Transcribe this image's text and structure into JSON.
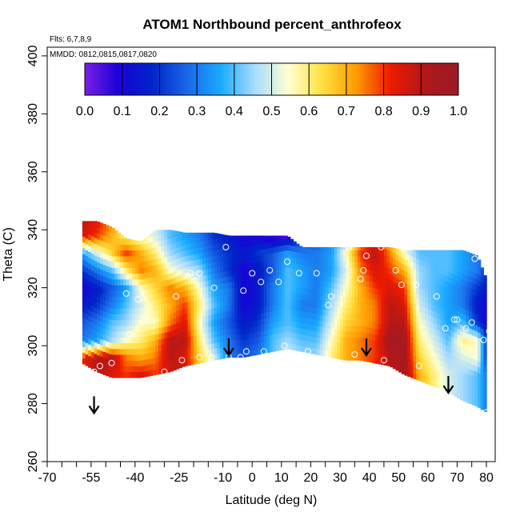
{
  "chart_data": {
    "type": "heatmap",
    "title": "ATOM1 Northbound percent_anthrofeox",
    "flights_note": "Flts: 6,7,8,9",
    "dates_note": "MMDD: 0812,0815,0817,0820",
    "xlabel": "Latitude (deg N)",
    "ylabel": "Theta (C)",
    "xlim": [
      -70,
      83
    ],
    "ylim": [
      260,
      403
    ],
    "x_tick_labels": [
      "-70",
      "-55",
      "-40",
      "-25",
      "-10",
      "0",
      "10",
      "20",
      "30",
      "40",
      "50",
      "60",
      "70",
      "80"
    ],
    "x_tick_values": [
      -70,
      -55,
      -40,
      -25,
      -10,
      0,
      10,
      20,
      30,
      40,
      50,
      60,
      70,
      80
    ],
    "x_minor_ticks": [
      -65,
      -60,
      -50,
      -45,
      -35,
      -30,
      -20,
      -15,
      -5,
      5,
      15,
      25,
      35,
      45,
      55,
      65,
      75
    ],
    "y_tick_values": [
      260,
      280,
      300,
      320,
      340,
      360,
      380,
      400
    ],
    "y_tick_labels": [
      "260",
      "280",
      "300",
      "320",
      "340",
      "360",
      "380",
      "400"
    ],
    "colorbar": {
      "range": [
        0,
        1
      ],
      "tick_labels": [
        "0.0",
        "0.1",
        "0.2",
        "0.3",
        "0.4",
        "0.5",
        "0.6",
        "0.7",
        "0.8",
        "0.9",
        "1.0"
      ],
      "colors": [
        "#7a1fe6",
        "#1a00d8",
        "#0026c8",
        "#1a66e8",
        "#1aaaff",
        "#a8dcff",
        "#ffffd0",
        "#ffe040",
        "#ff9a00",
        "#ee1a00",
        "#b01818",
        "#9a1a28"
      ]
    },
    "arrows_at_latitude": [
      {
        "lat": -54,
        "theta": 277
      },
      {
        "lat": -8,
        "theta": 297
      },
      {
        "lat": 39,
        "theta": 297
      },
      {
        "lat": 67,
        "theta": 284
      }
    ],
    "field": {
      "lat_points": [
        -58,
        -53,
        -48,
        -43,
        -38,
        -33,
        -28,
        -23,
        -18,
        -13,
        -8,
        -3,
        2,
        7,
        12,
        17,
        22,
        27,
        32,
        37,
        42,
        47,
        52,
        57,
        62,
        67,
        72,
        77,
        80
      ],
      "bottom_theta": [
        294,
        291,
        289,
        289,
        289,
        290,
        291,
        293,
        294,
        295,
        296,
        296,
        297,
        298,
        299,
        298,
        297,
        296,
        295,
        295,
        294,
        293,
        290,
        288,
        286,
        284,
        281,
        279,
        277
      ],
      "top_theta": [
        343,
        343,
        341,
        337,
        336,
        340,
        340,
        339,
        339,
        339,
        338,
        338,
        338,
        338,
        338,
        334,
        334,
        334,
        334,
        334,
        334,
        334,
        333,
        333,
        333,
        333,
        333,
        331,
        323
      ],
      "levels_theta": [
        290,
        296,
        302,
        308,
        314,
        320,
        326,
        332,
        338,
        344
      ],
      "values": [
        [
          0.9,
          0.9,
          0.85,
          0.8,
          0.85,
          0.8,
          0.85,
          0.9,
          0.7,
          0.6,
          0.45,
          0.4,
          0.4,
          0.45,
          0.5,
          0.55,
          0.55,
          0.6,
          0.65,
          0.8,
          0.85,
          0.9,
          0.95,
          0.7,
          0.6,
          0.5,
          0.45,
          0.4,
          0.3
        ],
        [
          0.8,
          0.9,
          0.9,
          0.75,
          0.7,
          0.75,
          0.9,
          0.85,
          0.65,
          0.5,
          0.3,
          0.25,
          0.3,
          0.4,
          0.5,
          0.45,
          0.45,
          0.6,
          0.7,
          0.75,
          0.8,
          0.9,
          0.95,
          0.65,
          0.55,
          0.45,
          0.5,
          0.55,
          0.2
        ],
        [
          0.3,
          0.35,
          0.45,
          0.55,
          0.6,
          0.7,
          0.9,
          0.9,
          0.6,
          0.4,
          0.3,
          0.2,
          0.25,
          0.4,
          0.45,
          0.4,
          0.4,
          0.55,
          0.7,
          0.75,
          0.8,
          0.95,
          0.95,
          0.6,
          0.5,
          0.4,
          0.6,
          0.55,
          0.2
        ],
        [
          0.25,
          0.3,
          0.4,
          0.45,
          0.55,
          0.55,
          0.75,
          0.85,
          0.55,
          0.35,
          0.25,
          0.15,
          0.2,
          0.35,
          0.4,
          0.35,
          0.35,
          0.5,
          0.65,
          0.7,
          0.75,
          0.9,
          0.9,
          0.55,
          0.45,
          0.35,
          0.4,
          0.2,
          0.1
        ],
        [
          0.15,
          0.2,
          0.3,
          0.4,
          0.5,
          0.6,
          0.7,
          0.8,
          0.6,
          0.4,
          0.3,
          0.1,
          0.15,
          0.3,
          0.4,
          0.3,
          0.3,
          0.45,
          0.6,
          0.7,
          0.75,
          0.9,
          0.85,
          0.5,
          0.4,
          0.35,
          0.3,
          0.15,
          0.1
        ],
        [
          0.1,
          0.15,
          0.25,
          0.35,
          0.55,
          0.65,
          0.75,
          0.7,
          0.55,
          0.35,
          0.3,
          0.1,
          0.15,
          0.3,
          0.4,
          0.35,
          0.3,
          0.4,
          0.55,
          0.7,
          0.8,
          0.85,
          0.8,
          0.45,
          0.4,
          0.35,
          0.3,
          0.2,
          0.15
        ],
        [
          0.2,
          0.3,
          0.4,
          0.6,
          0.75,
          0.7,
          0.55,
          0.5,
          0.45,
          0.3,
          0.2,
          0.1,
          0.15,
          0.25,
          0.4,
          0.35,
          0.3,
          0.35,
          0.5,
          0.75,
          0.85,
          0.8,
          0.7,
          0.45,
          0.4,
          0.4,
          0.35,
          0.3,
          0.2
        ],
        [
          0.35,
          0.5,
          0.65,
          0.8,
          0.7,
          0.6,
          0.45,
          0.4,
          0.35,
          0.25,
          0.2,
          0.15,
          0.2,
          0.25,
          0.35,
          0.3,
          0.3,
          0.35,
          0.55,
          0.8,
          0.9,
          0.75,
          0.55,
          0.4,
          0.4,
          0.4,
          0.35,
          0.3,
          0.25
        ],
        [
          0.85,
          0.8,
          0.7,
          0.6,
          0.55,
          0.5,
          0.4,
          0.35,
          0.3,
          0.2,
          0.15,
          0.1,
          0.1,
          0.05,
          0.05,
          0.2,
          0.25,
          0.3,
          0.4,
          0.7,
          0.8,
          0.65,
          0.45,
          0.4,
          0.4,
          0.4,
          0.35,
          0.3,
          0.25
        ],
        [
          0.9,
          0.85,
          0.75,
          0.65,
          0.55,
          0.5,
          0.4,
          0.35,
          0.3,
          0.2,
          0.15,
          0.1,
          0.1,
          0.05,
          0.05,
          0.2,
          0.25,
          0.3,
          0.4,
          0.7,
          0.8,
          0.65,
          0.45,
          0.4,
          0.4,
          0.4,
          0.35,
          0.3,
          0.25
        ]
      ]
    },
    "observation_points": [
      [
        -54,
        291
      ],
      [
        -52,
        293
      ],
      [
        -48,
        294
      ],
      [
        -30,
        291
      ],
      [
        -24,
        295
      ],
      [
        -18,
        296
      ],
      [
        -14,
        296
      ],
      [
        -8,
        296
      ],
      [
        -4,
        296
      ],
      [
        -2,
        298
      ],
      [
        4,
        298
      ],
      [
        11,
        300
      ],
      [
        19,
        298
      ],
      [
        26,
        296
      ],
      [
        35,
        297
      ],
      [
        45,
        295
      ],
      [
        57,
        293
      ],
      [
        -43,
        318
      ],
      [
        -39,
        316
      ],
      [
        -37,
        309
      ],
      [
        -42,
        304
      ],
      [
        -26,
        317
      ],
      [
        -21,
        325
      ],
      [
        -18,
        325
      ],
      [
        -13,
        320
      ],
      [
        -20,
        341
      ],
      [
        -9,
        334
      ],
      [
        -3,
        319
      ],
      [
        0,
        325
      ],
      [
        3,
        322
      ],
      [
        6,
        326
      ],
      [
        9,
        322
      ],
      [
        12,
        329
      ],
      [
        16,
        325
      ],
      [
        22,
        325
      ],
      [
        26,
        314
      ],
      [
        27,
        317
      ],
      [
        33,
        334
      ],
      [
        37,
        323
      ],
      [
        38,
        326
      ],
      [
        39,
        331
      ],
      [
        44,
        334
      ],
      [
        49,
        326
      ],
      [
        51,
        321
      ],
      [
        56,
        321
      ],
      [
        63,
        317
      ],
      [
        66,
        306
      ],
      [
        69,
        309
      ],
      [
        70,
        309
      ],
      [
        73,
        306
      ],
      [
        75,
        308
      ],
      [
        76,
        330
      ],
      [
        79,
        302
      ],
      [
        80,
        277
      ],
      [
        81,
        305
      ],
      [
        -60,
        321
      ]
    ]
  }
}
